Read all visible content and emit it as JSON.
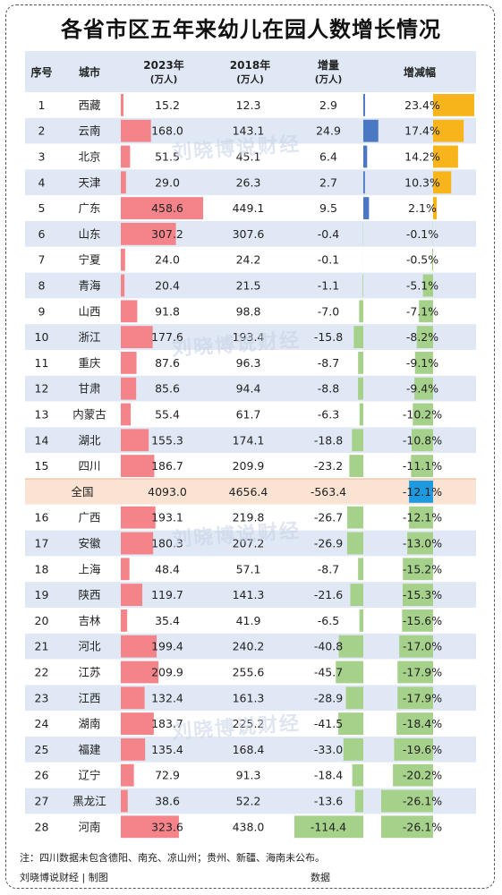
{
  "title": "各省市区五年来幼儿在园人数增长情况",
  "watermark": "刘晓博说财经",
  "footnote": "注：四川数据未包含德阳、南充、凉山州；贵州、新疆、海南未公布。",
  "footer_left": "刘晓博说财经 | 制图",
  "footer_right": "数据",
  "colors": {
    "row_blue": "#dfe8f4",
    "row_white": "#ffffff",
    "row_total": "#fbe3d3",
    "bar_2023": "#f4848a",
    "bar_pos_change": "#4a78c2",
    "bar_neg_change": "#a6d18b",
    "bar_pos_rate": "#f7b51b",
    "bar_neg_rate": "#a6d18b",
    "bar_total_rate": "#1e9be0"
  },
  "chart_data": {
    "type": "table",
    "columns": [
      {
        "key": "idx",
        "label": "序号",
        "sub": ""
      },
      {
        "key": "city",
        "label": "城市",
        "sub": ""
      },
      {
        "key": "v2023",
        "label": "2023年",
        "sub": "(万人)"
      },
      {
        "key": "v2018",
        "label": "2018年",
        "sub": "(万人)"
      },
      {
        "key": "change",
        "label": "增量",
        "sub": "(万人)"
      },
      {
        "key": "rate",
        "label": "增减幅",
        "sub": ""
      }
    ],
    "rows": [
      {
        "idx": "1",
        "city": "西藏",
        "v2023": "15.2",
        "v2018": "12.3",
        "change": "2.9",
        "rate": "23.4%"
      },
      {
        "idx": "2",
        "city": "云南",
        "v2023": "168.0",
        "v2018": "143.1",
        "change": "24.9",
        "rate": "17.4%"
      },
      {
        "idx": "3",
        "city": "北京",
        "v2023": "51.5",
        "v2018": "45.1",
        "change": "6.4",
        "rate": "14.2%"
      },
      {
        "idx": "4",
        "city": "天津",
        "v2023": "29.0",
        "v2018": "26.3",
        "change": "2.7",
        "rate": "10.3%"
      },
      {
        "idx": "5",
        "city": "广东",
        "v2023": "458.6",
        "v2018": "449.1",
        "change": "9.5",
        "rate": "2.1%"
      },
      {
        "idx": "6",
        "city": "山东",
        "v2023": "307.2",
        "v2018": "307.6",
        "change": "-0.4",
        "rate": "-0.1%"
      },
      {
        "idx": "7",
        "city": "宁夏",
        "v2023": "24.0",
        "v2018": "24.2",
        "change": "-0.1",
        "rate": "-0.5%"
      },
      {
        "idx": "8",
        "city": "青海",
        "v2023": "20.4",
        "v2018": "21.5",
        "change": "-1.1",
        "rate": "-5.1%"
      },
      {
        "idx": "9",
        "city": "山西",
        "v2023": "91.8",
        "v2018": "98.8",
        "change": "-7.0",
        "rate": "-7.1%"
      },
      {
        "idx": "10",
        "city": "浙江",
        "v2023": "177.6",
        "v2018": "193.4",
        "change": "-15.8",
        "rate": "-8.2%"
      },
      {
        "idx": "11",
        "city": "重庆",
        "v2023": "87.6",
        "v2018": "96.3",
        "change": "-8.7",
        "rate": "-9.1%"
      },
      {
        "idx": "12",
        "city": "甘肃",
        "v2023": "85.6",
        "v2018": "94.4",
        "change": "-8.8",
        "rate": "-9.4%"
      },
      {
        "idx": "13",
        "city": "内蒙古",
        "v2023": "55.4",
        "v2018": "61.7",
        "change": "-6.3",
        "rate": "-10.2%"
      },
      {
        "idx": "14",
        "city": "湖北",
        "v2023": "155.3",
        "v2018": "174.1",
        "change": "-18.8",
        "rate": "-10.8%"
      },
      {
        "idx": "15",
        "city": "四川",
        "v2023": "186.7",
        "v2018": "209.9",
        "change": "-23.2",
        "rate": "-11.1%"
      },
      {
        "idx": "",
        "city": "全国",
        "v2023": "4093.0",
        "v2018": "4656.4",
        "change": "-563.4",
        "rate": "-12.1%",
        "total": true
      },
      {
        "idx": "16",
        "city": "广西",
        "v2023": "193.1",
        "v2018": "219.8",
        "change": "-26.7",
        "rate": "-12.1%"
      },
      {
        "idx": "17",
        "city": "安徽",
        "v2023": "180.3",
        "v2018": "207.2",
        "change": "-26.9",
        "rate": "-13.0%"
      },
      {
        "idx": "18",
        "city": "上海",
        "v2023": "48.4",
        "v2018": "57.1",
        "change": "-8.7",
        "rate": "-15.2%"
      },
      {
        "idx": "19",
        "city": "陕西",
        "v2023": "119.7",
        "v2018": "141.3",
        "change": "-21.6",
        "rate": "-15.3%"
      },
      {
        "idx": "20",
        "city": "吉林",
        "v2023": "35.4",
        "v2018": "41.9",
        "change": "-6.5",
        "rate": "-15.6%"
      },
      {
        "idx": "21",
        "city": "河北",
        "v2023": "199.4",
        "v2018": "240.2",
        "change": "-40.8",
        "rate": "-17.0%"
      },
      {
        "idx": "22",
        "city": "江苏",
        "v2023": "209.9",
        "v2018": "255.6",
        "change": "-45.7",
        "rate": "-17.9%"
      },
      {
        "idx": "23",
        "city": "江西",
        "v2023": "132.4",
        "v2018": "161.3",
        "change": "-28.9",
        "rate": "-17.9%"
      },
      {
        "idx": "24",
        "city": "湖南",
        "v2023": "183.7",
        "v2018": "225.2",
        "change": "-41.5",
        "rate": "-18.4%"
      },
      {
        "idx": "25",
        "city": "福建",
        "v2023": "135.4",
        "v2018": "168.4",
        "change": "-33.0",
        "rate": "-19.6%"
      },
      {
        "idx": "26",
        "city": "辽宁",
        "v2023": "72.9",
        "v2018": "91.3",
        "change": "-18.4",
        "rate": "-20.2%"
      },
      {
        "idx": "27",
        "city": "黑龙江",
        "v2023": "38.6",
        "v2018": "52.2",
        "change": "-13.6",
        "rate": "-26.1%"
      },
      {
        "idx": "28",
        "city": "河南",
        "v2023": "323.6",
        "v2018": "438.0",
        "change": "-114.4",
        "rate": "-26.1%"
      }
    ]
  }
}
